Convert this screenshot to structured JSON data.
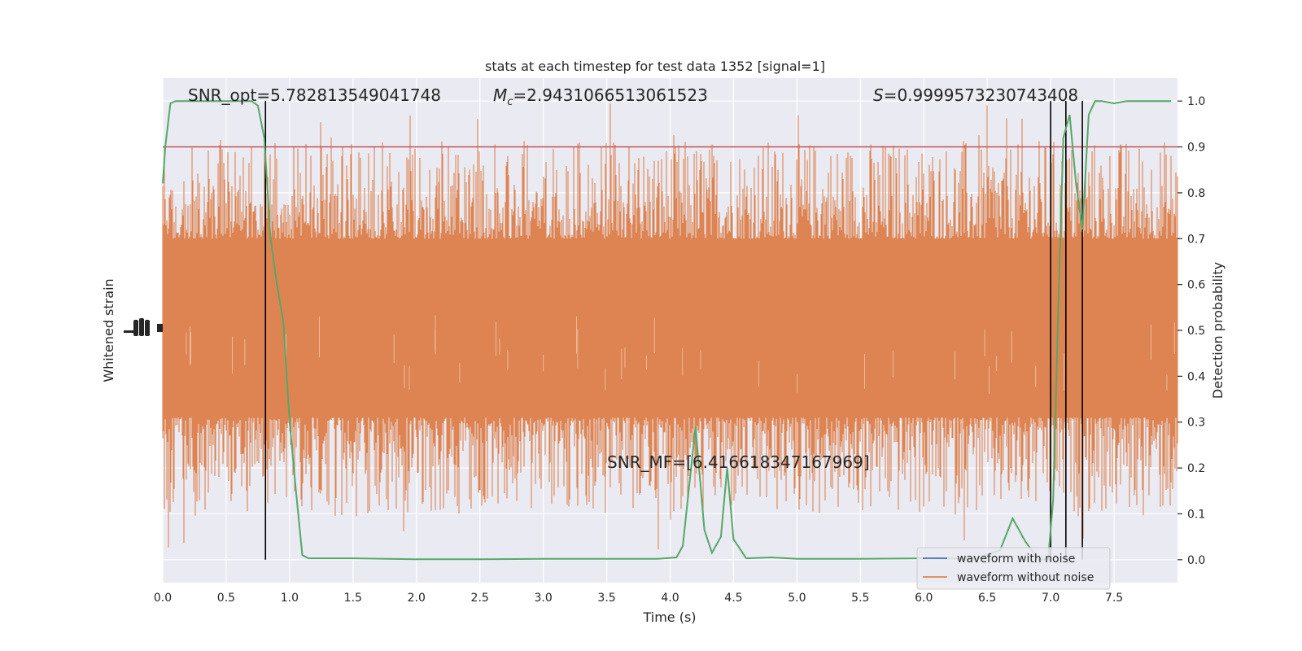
{
  "chart_data": {
    "type": "line",
    "title": "stats at each timestep for test data 1352 [signal=1]",
    "xlabel": "Time (s)",
    "ylabel_left": "Whitened strain",
    "ylabel_right": "Detection probability",
    "xlim": [
      0,
      8
    ],
    "ylim_right": [
      -0.05,
      1.05
    ],
    "x_ticks": [
      "0.0",
      "0.5",
      "1.0",
      "1.5",
      "2.0",
      "2.5",
      "3.0",
      "3.5",
      "4.0",
      "4.5",
      "5.0",
      "5.5",
      "6.0",
      "6.5",
      "7.0",
      "7.5"
    ],
    "y_ticks_right": [
      "0.0",
      "0.1",
      "0.2",
      "0.3",
      "0.4",
      "0.5",
      "0.6",
      "0.7",
      "0.8",
      "0.9",
      "1.0"
    ],
    "grid": true,
    "legend_position": "bottom-right",
    "annotations": {
      "snr_opt": "SNR_opt=5.782813549041748",
      "mc_symbol": "M",
      "mc_sub": "c",
      "mc_value": "=2.9431066513061523",
      "s_symbol": "S",
      "s_value": "=0.9999573230743408",
      "snr_mf": "SNR_MF=[6.416618347167969]"
    },
    "series": [
      {
        "name": "waveform with noise",
        "color": "#4c72b0"
      },
      {
        "name": "waveform without noise",
        "color": "#dd8452"
      }
    ],
    "noise_band": {
      "core": [
        0.31,
        0.7
      ],
      "spike_max": 0.995,
      "spike_min": 0.005
    },
    "threshold": {
      "y": 0.9,
      "color": "#c44e52"
    },
    "event_lines_x": [
      0.81,
      7.0,
      7.12,
      7.25
    ],
    "detection_probability": {
      "color": "#55a868",
      "x": [
        0.0,
        0.02,
        0.06,
        0.1,
        0.2,
        0.3,
        0.4,
        0.5,
        0.6,
        0.7,
        0.75,
        0.8,
        0.85,
        0.9,
        0.95,
        1.0,
        1.05,
        1.1,
        1.15,
        1.5,
        2.0,
        2.5,
        3.0,
        3.5,
        3.9,
        4.05,
        4.1,
        4.2,
        4.27,
        4.33,
        4.4,
        4.45,
        4.5,
        4.6,
        4.8,
        5.0,
        5.5,
        6.0,
        6.4,
        6.6,
        6.7,
        6.8,
        6.9,
        6.98,
        7.02,
        7.06,
        7.1,
        7.15,
        7.2,
        7.25,
        7.3,
        7.35,
        7.4,
        7.5,
        7.6,
        7.7,
        7.8,
        7.95
      ],
      "y": [
        0.82,
        0.9,
        0.995,
        1.0,
        1.0,
        1.0,
        1.0,
        1.0,
        1.0,
        1.0,
        0.99,
        0.92,
        0.7,
        0.6,
        0.52,
        0.3,
        0.15,
        0.01,
        0.003,
        0.003,
        0.001,
        0.001,
        0.002,
        0.002,
        0.002,
        0.005,
        0.03,
        0.29,
        0.065,
        0.015,
        0.05,
        0.2,
        0.045,
        0.003,
        0.005,
        0.002,
        0.002,
        0.003,
        0.002,
        0.02,
        0.09,
        0.04,
        0.002,
        0.0,
        0.13,
        0.55,
        0.92,
        0.97,
        0.82,
        0.72,
        0.97,
        1.0,
        1.0,
        0.995,
        1.0,
        1.0,
        1.0,
        1.0
      ]
    }
  }
}
